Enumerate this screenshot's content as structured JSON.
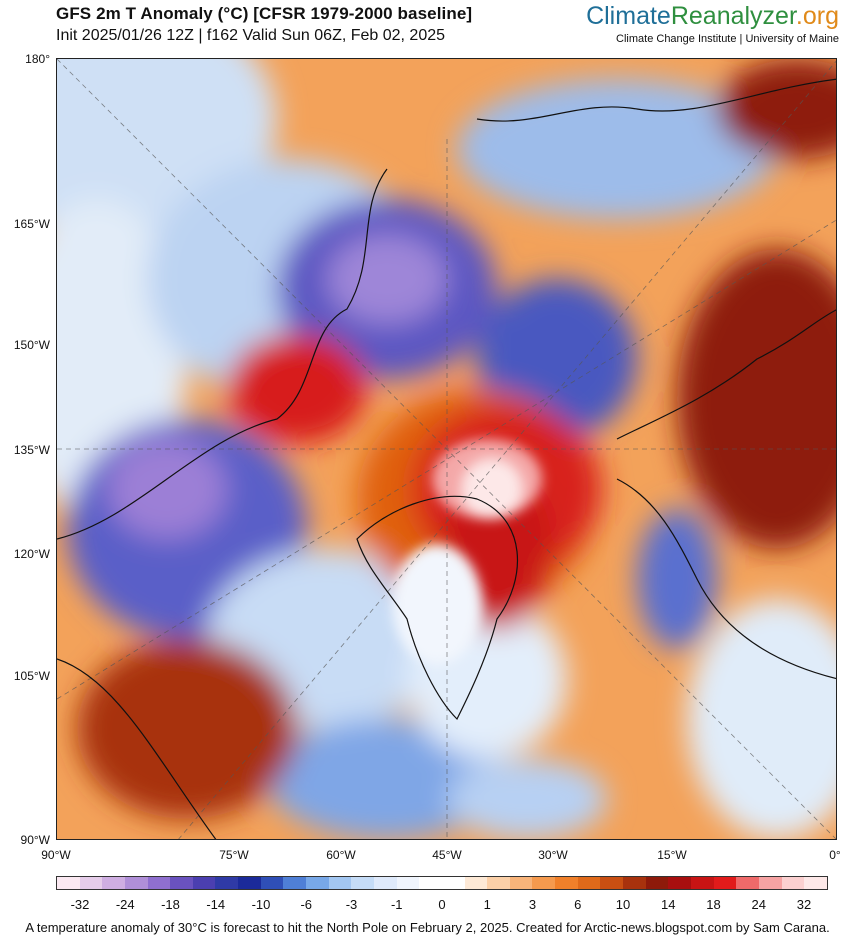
{
  "header": {
    "title": "GFS 2m T Anomaly (°C) [CFSR 1979-2000 baseline]",
    "subtitle": "Init 2025/01/26 12Z | f162 Valid Sun 06Z, Feb 02, 2025"
  },
  "brand": {
    "part1": "Climate",
    "part2": "Reanalyzer",
    "part3": ".org",
    "affiliation": "Climate Change Institute | University of Maine",
    "colors": {
      "climate": "#1f6f98",
      "reanalyzer": "#2f8f3f",
      "org": "#e08a1a"
    }
  },
  "map": {
    "lat_labels": [
      "180°",
      "165°W",
      "150°W",
      "135°W",
      "120°W",
      "105°W",
      "90°W"
    ],
    "lon_labels": [
      "90°W",
      "75°W",
      "60°W",
      "45°W",
      "30°W",
      "15°W",
      "0°"
    ]
  },
  "legend": {
    "labels": [
      "-32",
      "-24",
      "-18",
      "-14",
      "-10",
      "-6",
      "-3",
      "-1",
      "0",
      "1",
      "3",
      "6",
      "10",
      "14",
      "18",
      "24",
      "32"
    ],
    "colors": [
      "#fbe9f2",
      "#e6cdea",
      "#cfaee2",
      "#b08fd8",
      "#8f6fcf",
      "#6a52bf",
      "#4b3fb0",
      "#2f3aa6",
      "#1b2a9a",
      "#2f4fb7",
      "#4f7fd6",
      "#78a8e8",
      "#a3c7f2",
      "#c5dcf7",
      "#dfeafb",
      "#f0f5fd",
      "#ffffff",
      "#ffffff",
      "#fde9d6",
      "#fbd0a8",
      "#f8b47a",
      "#f59a4e",
      "#f0802a",
      "#e06a1a",
      "#c94f12",
      "#a8320d",
      "#8e1a0a",
      "#a80f0f",
      "#c81414",
      "#e21b1b",
      "#ef6a6a",
      "#f6a3a3",
      "#fbd0d0",
      "#fde8e8"
    ]
  },
  "caption": "A temperature anomaly of 30°C  is forecast to hit the North Pole on February 2, 2025. Created for Arctic-news.blogspot.com by Sam Carana."
}
